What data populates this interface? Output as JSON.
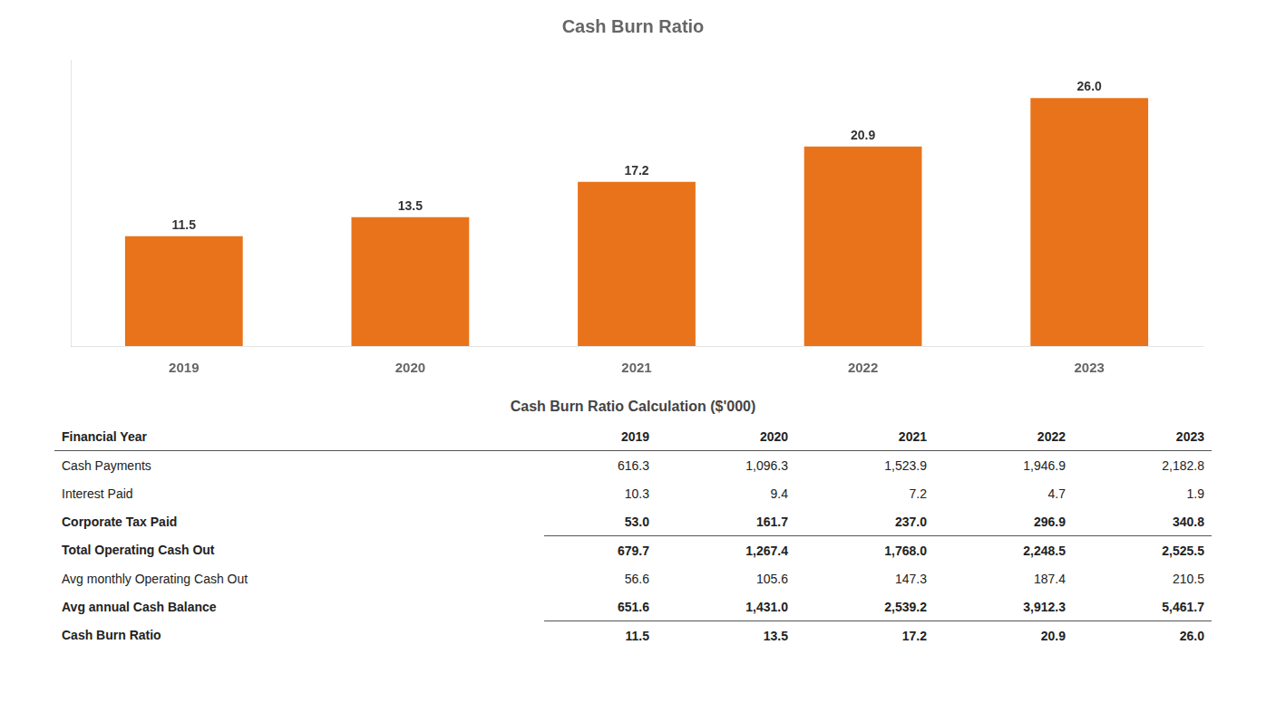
{
  "chart_data": [
    {
      "type": "bar",
      "title": "Cash Burn Ratio",
      "categories": [
        "2019",
        "2020",
        "2021",
        "2022",
        "2023"
      ],
      "values": [
        11.5,
        13.5,
        17.2,
        20.9,
        26.0
      ],
      "value_labels": [
        "11.5",
        "13.5",
        "17.2",
        "20.9",
        "26.0"
      ],
      "color": "#E8731A",
      "ylim": [
        0,
        30
      ],
      "grid": false,
      "data_labels": true,
      "tick_labels": "x"
    },
    {
      "type": "table",
      "title": "Cash Burn Ratio Calculation ($'000)",
      "columns": [
        "Financial Year",
        "2019",
        "2020",
        "2021",
        "2022",
        "2023"
      ],
      "rows": [
        [
          "Cash Payments",
          "616.3",
          "1,096.3",
          "1,523.9",
          "1,946.9",
          "2,182.8"
        ],
        [
          "Interest Paid",
          "10.3",
          "9.4",
          "7.2",
          "4.7",
          "1.9"
        ],
        [
          "Corporate Tax Paid",
          "53.0",
          "161.7",
          "237.0",
          "296.9",
          "340.8"
        ],
        [
          "Total Operating Cash Out",
          "679.7",
          "1,267.4",
          "1,768.0",
          "2,248.5",
          "2,525.5"
        ],
        [
          "Avg monthly Operating Cash Out",
          "56.6",
          "105.6",
          "147.3",
          "187.4",
          "210.5"
        ],
        [
          "Avg annual Cash Balance",
          "651.6",
          "1,431.0",
          "2,539.2",
          "3,912.3",
          "5,461.7"
        ],
        [
          "Cash Burn Ratio",
          "11.5",
          "13.5",
          "17.2",
          "20.9",
          "26.0"
        ]
      ]
    }
  ]
}
